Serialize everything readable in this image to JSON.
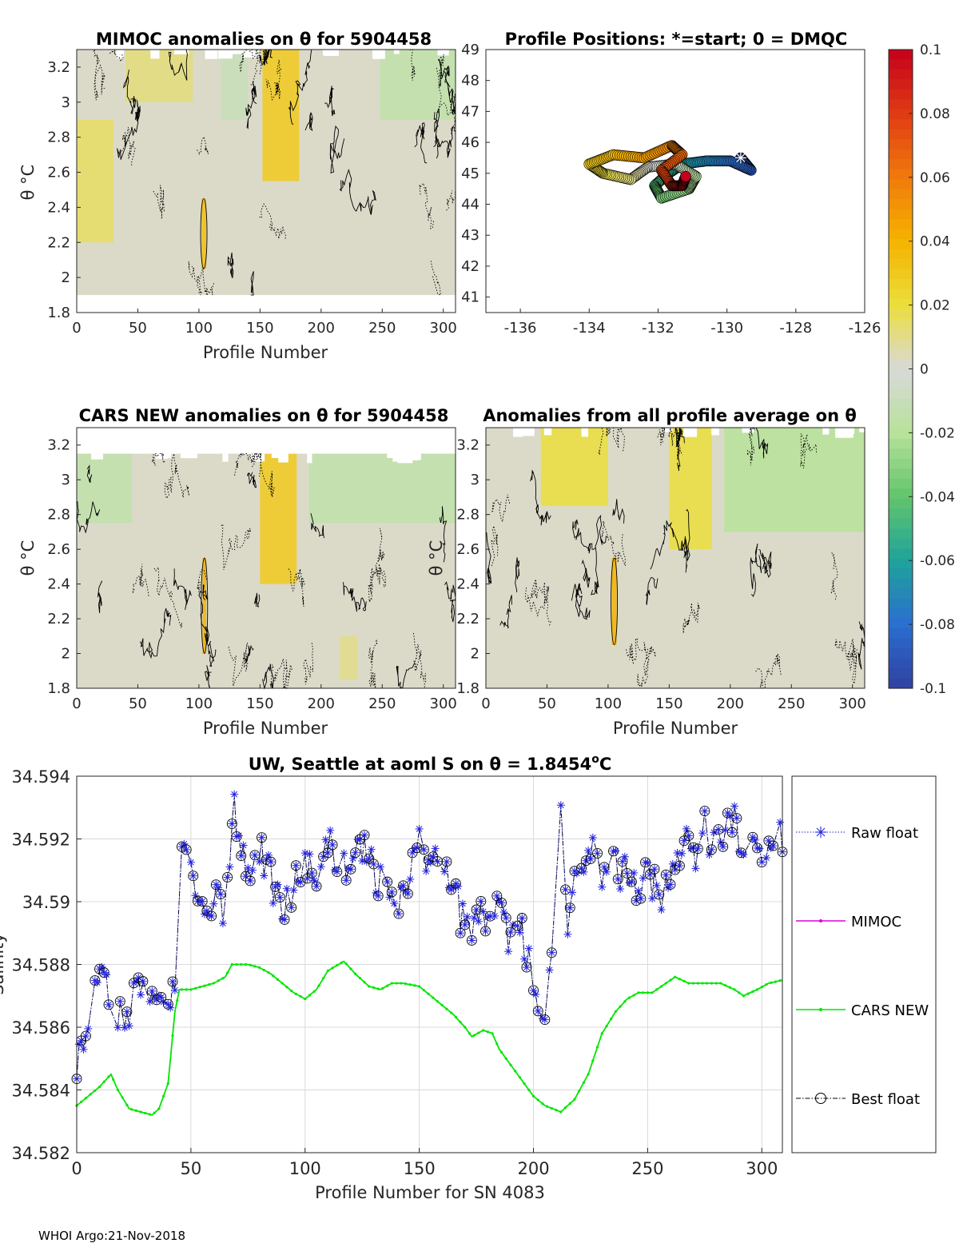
{
  "chart_data": [
    {
      "id": "mimoc",
      "type": "heatmap",
      "title": "MIMOC anomalies on θ  for 5904458",
      "xlabel": "Profile Number",
      "ylabel": "θ °C",
      "xlim": [
        0,
        310
      ],
      "ylim": [
        1.8,
        3.3
      ],
      "xticks": [
        0,
        50,
        100,
        150,
        200,
        250,
        300
      ],
      "yticks": [
        "1.8",
        "2",
        "2.2",
        "2.4",
        "2.6",
        "2.8",
        "3",
        "3.2"
      ],
      "y_data_range": [
        1.9,
        3.3
      ],
      "patches": [
        {
          "x0": 152,
          "x1": 182,
          "y0": 2.55,
          "y1": 3.3,
          "value": 0.03
        },
        {
          "x0": 102,
          "x1": 106,
          "y0": 2.05,
          "y1": 2.45,
          "value": 0.035
        },
        {
          "x0": 248,
          "x1": 310,
          "y0": 2.9,
          "y1": 3.3,
          "value": -0.015
        },
        {
          "x0": 40,
          "x1": 95,
          "y0": 3.0,
          "y1": 3.3,
          "value": 0.012
        },
        {
          "x0": 0,
          "x1": 30,
          "y0": 2.2,
          "y1": 2.9,
          "value": 0.015
        },
        {
          "x0": 118,
          "x1": 140,
          "y0": 2.9,
          "y1": 3.3,
          "value": -0.01
        }
      ]
    },
    {
      "id": "positions",
      "type": "scatter",
      "title": "Profile Positions: *=start; 0 = DMQC",
      "xlim": [
        -137,
        -126
      ],
      "ylim": [
        40.5,
        49
      ],
      "xticks": [
        -136,
        -134,
        -132,
        -130,
        -128,
        -126
      ],
      "yticks": [
        "41",
        "42",
        "43",
        "44",
        "45",
        "46",
        "47",
        "48",
        "49"
      ],
      "start": {
        "lon": -129.6,
        "lat": 45.5
      },
      "track_waypoints": [
        [
          -129.6,
          45.5
        ],
        [
          -129.3,
          45.1
        ],
        [
          -129.9,
          45.4
        ],
        [
          -130.6,
          45.4
        ],
        [
          -131.3,
          45.3
        ],
        [
          -131.7,
          45.0
        ],
        [
          -132.1,
          44.6
        ],
        [
          -131.9,
          44.2
        ],
        [
          -131.1,
          44.5
        ],
        [
          -130.9,
          44.9
        ],
        [
          -131.5,
          45.3
        ],
        [
          -132.3,
          45.2
        ],
        [
          -132.8,
          44.8
        ],
        [
          -133.6,
          45.0
        ],
        [
          -134.0,
          45.3
        ],
        [
          -133.3,
          45.6
        ],
        [
          -132.4,
          45.5
        ],
        [
          -131.6,
          45.9
        ],
        [
          -131.3,
          45.6
        ],
        [
          -131.9,
          45.1
        ],
        [
          -131.6,
          44.6
        ],
        [
          -131.3,
          44.6
        ],
        [
          -131.2,
          44.9
        ]
      ]
    },
    {
      "id": "cars",
      "type": "heatmap",
      "title": "CARS NEW anomalies on θ for 5904458",
      "xlabel": "Profile Number",
      "ylabel": "θ °C",
      "xlim": [
        0,
        310
      ],
      "ylim": [
        1.8,
        3.3
      ],
      "xticks": [
        0,
        50,
        100,
        150,
        200,
        250,
        300
      ],
      "yticks": [
        "1.8",
        "2",
        "2.2",
        "2.4",
        "2.6",
        "2.8",
        "3",
        "3.2"
      ],
      "y_data_range": [
        1.8,
        3.15
      ],
      "patches": [
        {
          "x0": 150,
          "x1": 180,
          "y0": 2.4,
          "y1": 3.15,
          "value": 0.03
        },
        {
          "x0": 103,
          "x1": 106,
          "y0": 2.0,
          "y1": 2.55,
          "value": 0.04
        },
        {
          "x0": 190,
          "x1": 310,
          "y0": 2.75,
          "y1": 3.15,
          "value": -0.015
        },
        {
          "x0": 0,
          "x1": 45,
          "y0": 2.75,
          "y1": 3.15,
          "value": -0.015
        },
        {
          "x0": 215,
          "x1": 230,
          "y0": 1.85,
          "y1": 2.1,
          "value": 0.01
        }
      ]
    },
    {
      "id": "avg",
      "type": "heatmap",
      "title": "Anomalies from all profile average on θ",
      "xlabel": "Profile Number",
      "ylabel": "θ °C",
      "xlim": [
        0,
        310
      ],
      "ylim": [
        1.8,
        3.3
      ],
      "xticks": [
        0,
        50,
        100,
        150,
        200,
        250,
        300
      ],
      "yticks": [
        "1.8",
        "2",
        "2.2",
        "2.4",
        "2.6",
        "2.8",
        "3",
        "3.2"
      ],
      "y_data_range": [
        1.8,
        3.3
      ],
      "patches": [
        {
          "x0": 45,
          "x1": 100,
          "y0": 2.85,
          "y1": 3.3,
          "value": 0.02
        },
        {
          "x0": 150,
          "x1": 185,
          "y0": 2.6,
          "y1": 3.3,
          "value": 0.02
        },
        {
          "x0": 195,
          "x1": 310,
          "y0": 2.7,
          "y1": 3.3,
          "value": -0.02
        },
        {
          "x0": 103,
          "x1": 107,
          "y0": 2.05,
          "y1": 2.55,
          "value": 0.04
        }
      ]
    },
    {
      "id": "salinity",
      "type": "line",
      "title": "UW, Seattle at aoml S on θ = 1.8454°C",
      "title_main": "UW, Seattle at aoml S on θ = 1.8454",
      "title_sup": "o",
      "title_end": "C",
      "xlabel": "Profile Number for SN 4083",
      "ylabel": "Salinity",
      "xlim": [
        0,
        309
      ],
      "ylim": [
        34.582,
        34.594
      ],
      "xticks": [
        0,
        50,
        100,
        150,
        200,
        250,
        300
      ],
      "yticks": [
        "34.582",
        "34.584",
        "34.586",
        "34.588",
        "34.59",
        "34.592",
        "34.594"
      ],
      "grid": true,
      "legend_position": "right-outside",
      "series": [
        {
          "name": "Raw float",
          "color": "#2222dd",
          "anchors": [
            [
              0,
              34.585
            ],
            [
              5,
              34.5858
            ],
            [
              10,
              34.5885
            ],
            [
              15,
              34.5868
            ],
            [
              20,
              34.5862
            ],
            [
              25,
              34.5868
            ],
            [
              31,
              34.5872
            ],
            [
              36,
              34.5866
            ],
            [
              40,
              34.5862
            ],
            [
              43,
              34.5876
            ],
            [
              45,
              34.5918
            ],
            [
              50,
              34.5914
            ],
            [
              55,
              34.5898
            ],
            [
              60,
              34.5902
            ],
            [
              65,
              34.5898
            ],
            [
              69,
              34.5928
            ],
            [
              75,
              34.591
            ],
            [
              80,
              34.5918
            ],
            [
              85,
              34.5908
            ],
            [
              90,
              34.5898
            ],
            [
              95,
              34.5905
            ],
            [
              100,
              34.5915
            ],
            [
              105,
              34.5905
            ],
            [
              110,
              34.5918
            ],
            [
              115,
              34.591
            ],
            [
              120,
              34.5915
            ],
            [
              125,
              34.5918
            ],
            [
              130,
              34.591
            ],
            [
              135,
              34.5902
            ],
            [
              140,
              34.5898
            ],
            [
              145,
              34.5905
            ],
            [
              150,
              34.5918
            ],
            [
              155,
              34.591
            ],
            [
              160,
              34.5912
            ],
            [
              165,
              34.5905
            ],
            [
              170,
              34.589
            ],
            [
              175,
              34.5895
            ],
            [
              180,
              34.5892
            ],
            [
              185,
              34.59
            ],
            [
              190,
              34.5888
            ],
            [
              195,
              34.5892
            ],
            [
              200,
              34.5872
            ],
            [
              205,
              34.5866
            ],
            [
              210,
              34.5885
            ],
            [
              212,
              34.5925
            ],
            [
              215,
              34.5895
            ],
            [
              220,
              34.5912
            ],
            [
              225,
              34.5915
            ],
            [
              230,
              34.591
            ],
            [
              235,
              34.5912
            ],
            [
              240,
              34.5908
            ],
            [
              245,
              34.5903
            ],
            [
              250,
              34.591
            ],
            [
              255,
              34.5902
            ],
            [
              260,
              34.5905
            ],
            [
              265,
              34.592
            ],
            [
              270,
              34.5912
            ],
            [
              275,
              34.5925
            ],
            [
              280,
              34.5915
            ],
            [
              285,
              34.5928
            ],
            [
              290,
              34.5922
            ],
            [
              295,
              34.5918
            ],
            [
              300,
              34.591
            ],
            [
              305,
              34.5915
            ],
            [
              309,
              34.5921
            ]
          ]
        },
        {
          "name": "MIMOC",
          "color": "#dd00dd",
          "anchors": []
        },
        {
          "name": "CARS NEW",
          "color": "#00e600",
          "anchors": [
            [
              0,
              34.5835
            ],
            [
              5,
              34.5838
            ],
            [
              10,
              34.5841
            ],
            [
              15,
              34.5845
            ],
            [
              18,
              34.584
            ],
            [
              23,
              34.5834
            ],
            [
              28,
              34.5833
            ],
            [
              33,
              34.5832
            ],
            [
              36,
              34.5834
            ],
            [
              40,
              34.5842
            ],
            [
              43,
              34.5865
            ],
            [
              45,
              34.5872
            ],
            [
              50,
              34.5872
            ],
            [
              55,
              34.5873
            ],
            [
              60,
              34.5874
            ],
            [
              65,
              34.5876
            ],
            [
              68,
              34.588
            ],
            [
              75,
              34.588
            ],
            [
              80,
              34.5879
            ],
            [
              85,
              34.5877
            ],
            [
              90,
              34.5874
            ],
            [
              95,
              34.5871
            ],
            [
              100,
              34.5869
            ],
            [
              105,
              34.5872
            ],
            [
              110,
              34.5878
            ],
            [
              117,
              34.5881
            ],
            [
              122,
              34.5877
            ],
            [
              128,
              34.5873
            ],
            [
              133,
              34.5872
            ],
            [
              138,
              34.5874
            ],
            [
              143,
              34.5874
            ],
            [
              150,
              34.5873
            ],
            [
              155,
              34.587
            ],
            [
              160,
              34.5867
            ],
            [
              165,
              34.5864
            ],
            [
              170,
              34.586
            ],
            [
              173,
              34.5857
            ],
            [
              178,
              34.5859
            ],
            [
              182,
              34.5858
            ],
            [
              185,
              34.5853
            ],
            [
              190,
              34.5848
            ],
            [
              195,
              34.5843
            ],
            [
              200,
              34.5838
            ],
            [
              205,
              34.5835
            ],
            [
              212,
              34.5833
            ],
            [
              218,
              34.5837
            ],
            [
              224,
              34.5845
            ],
            [
              230,
              34.5858
            ],
            [
              236,
              34.5865
            ],
            [
              241,
              34.5869
            ],
            [
              246,
              34.5871
            ],
            [
              252,
              34.5871
            ],
            [
              258,
              34.5874
            ],
            [
              262,
              34.5876
            ],
            [
              268,
              34.5874
            ],
            [
              275,
              34.5874
            ],
            [
              282,
              34.5874
            ],
            [
              288,
              34.5872
            ],
            [
              292,
              34.587
            ],
            [
              298,
              34.5872
            ],
            [
              303,
              34.5874
            ],
            [
              309,
              34.5875
            ]
          ]
        },
        {
          "name": "Best float",
          "color": "#000000",
          "anchors": []
        }
      ]
    }
  ],
  "colorbar": {
    "range": [
      -0.1,
      0.1
    ],
    "ticks": [
      "0.1",
      "0.08",
      "0.06",
      "0.04",
      "0.02",
      "0",
      "-0.02",
      "-0.04",
      "-0.06",
      "-0.08",
      "-0.1"
    ],
    "colors": [
      "#c4001a",
      "#e03b14",
      "#f07a0c",
      "#f5b300",
      "#ebde3c",
      "#d9d9d9",
      "#b7e29a",
      "#62c56c",
      "#1fa39a",
      "#2a6fd0",
      "#3040a0"
    ]
  },
  "footer": "WHOI Argo:21-Nov-2018"
}
